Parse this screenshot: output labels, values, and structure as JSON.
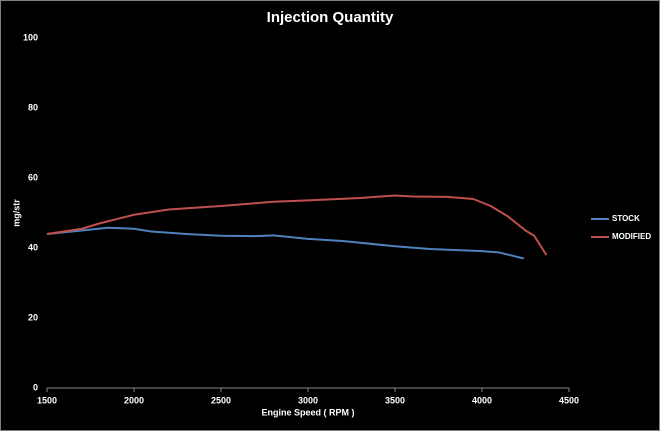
{
  "chart_data": {
    "type": "line",
    "title": "Injection Quantity",
    "x_label": "Engine Speed ( RPM )",
    "y_label": "mg/str",
    "series": [
      {
        "name": "STOCK",
        "color": "#4f81bd",
        "x": [
          1500,
          1700,
          1850,
          2000,
          2100,
          2300,
          2500,
          2700,
          2800,
          3000,
          3200,
          3500,
          3700,
          4000,
          4100,
          4240
        ],
        "values": [
          44,
          45,
          45.8,
          45.5,
          44.7,
          44,
          43.5,
          43.4,
          43.6,
          42.6,
          42,
          40.5,
          39.7,
          39.1,
          38.7,
          37
        ]
      },
      {
        "name": "MODIFIED",
        "color": "#c0504d",
        "x": [
          1500,
          1700,
          1800,
          2000,
          2200,
          2500,
          2800,
          3000,
          3300,
          3500,
          3600,
          3800,
          3950,
          4050,
          4150,
          4250,
          4300,
          4370
        ],
        "values": [
          44,
          45.5,
          47,
          49.5,
          51,
          52,
          53.2,
          53.6,
          54.3,
          55,
          54.7,
          54.6,
          54,
          52,
          49,
          45,
          43.5,
          38
        ]
      }
    ],
    "xlim": [
      1500,
      4500
    ],
    "xticks": [
      1500,
      2000,
      2500,
      3000,
      3500,
      4000,
      4500
    ],
    "ylim": [
      0,
      100
    ],
    "yticks": [
      0,
      20,
      40,
      60,
      80,
      100
    ],
    "grid": false,
    "legend": "right"
  }
}
